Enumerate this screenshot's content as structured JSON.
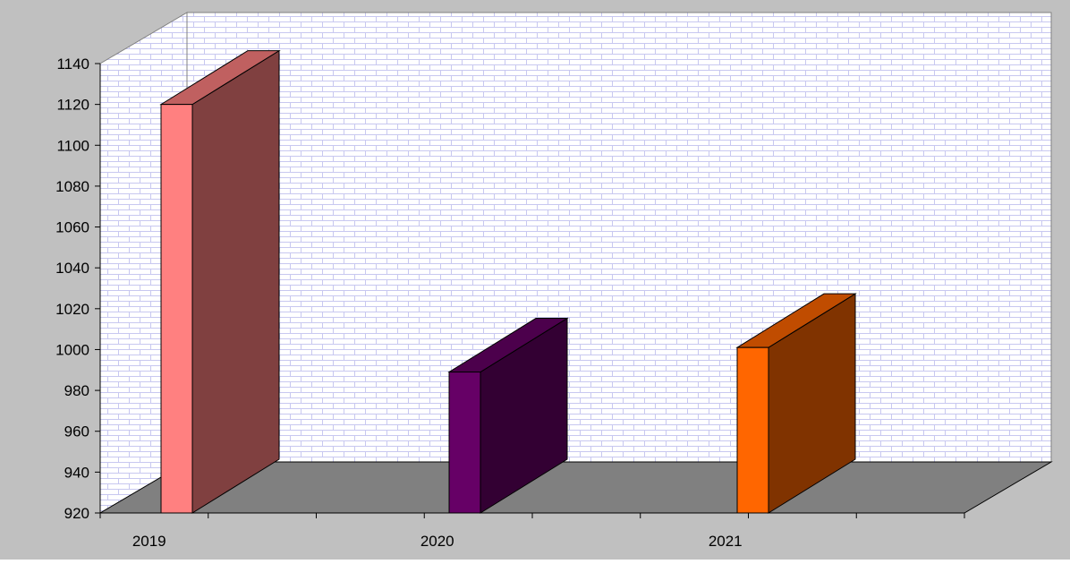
{
  "chart_data": {
    "type": "bar",
    "title": "",
    "xlabel": "",
    "ylabel": "",
    "categories": [
      "2019",
      "2020",
      "2021"
    ],
    "values": [
      1120,
      989,
      1001
    ],
    "ylim": [
      920,
      1140
    ],
    "yticks": [
      920,
      940,
      960,
      980,
      1000,
      1020,
      1040,
      1060,
      1080,
      1100,
      1120,
      1140
    ],
    "three_d": true,
    "legend": "none",
    "wall_pattern": "brick",
    "colors": {
      "background": "#c0c0c0",
      "wall_fill": "#ffffff",
      "wall_brick": "#c8c8f0",
      "floor": "#808080",
      "bars": [
        {
          "front": "#ff8080",
          "top": "#c06060",
          "side": "#804040"
        },
        {
          "front": "#660066",
          "top": "#4c004c",
          "side": "#330033"
        },
        {
          "front": "#ff6600",
          "top": "#c04c00",
          "side": "#803300"
        }
      ]
    }
  }
}
